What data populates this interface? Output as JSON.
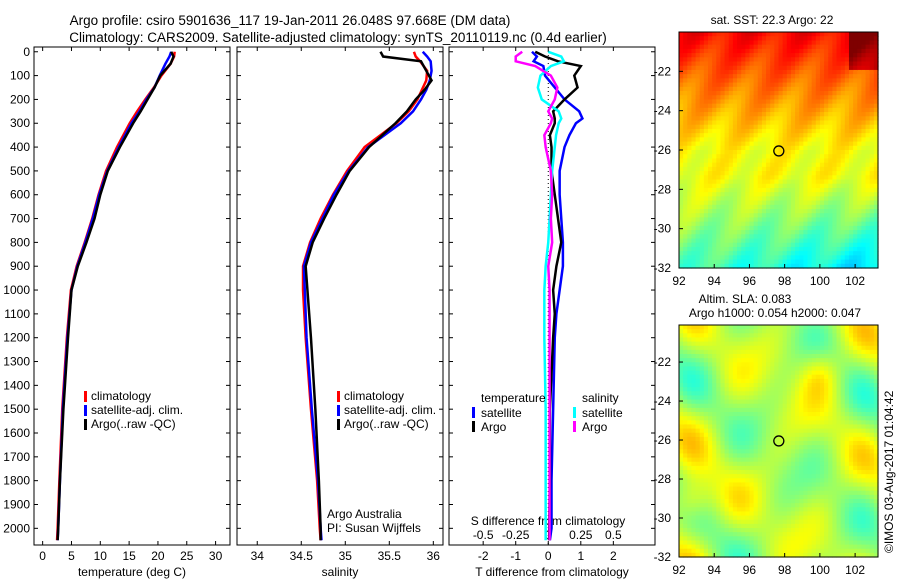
{
  "title_line1": "Argo profile: csiro 5901636_117 19-Jan-2011 26.048S 97.668E (DM data)",
  "title_line2": "Climatology: CARS2009. Satellite-adjusted climatology: synTS_20110119.nc (0.4d earlier)",
  "side_label": "©IMOS 03-Aug-2017 01:04:42",
  "colors": {
    "climatology": "#ff0000",
    "satellite": "#0000ff",
    "argo": "#000000",
    "sal_satellite": "#00ffff",
    "sal_argo": "#ff00ff"
  },
  "chart_data": [
    {
      "type": "line",
      "xlabel": "temperature (deg C)",
      "xlim": [
        -1.5,
        32.5
      ],
      "xticks": [
        "0",
        "5",
        "10",
        "15",
        "20",
        "25",
        "30"
      ],
      "xtick_values": [
        0,
        5,
        10,
        15,
        20,
        25,
        30
      ],
      "ylim": [
        -20,
        2070
      ],
      "yticks": [
        "0",
        "100",
        "200",
        "300",
        "400",
        "500",
        "600",
        "700",
        "800",
        "900",
        "1000",
        "1100",
        "1200",
        "1300",
        "1400",
        "1500",
        "1600",
        "1700",
        "1800",
        "1900",
        "2000"
      ],
      "ytick_values": [
        0,
        100,
        200,
        300,
        400,
        500,
        600,
        700,
        800,
        900,
        1000,
        1100,
        1200,
        1300,
        1400,
        1500,
        1600,
        1700,
        1800,
        1900,
        2000
      ],
      "legend": [
        "climatology",
        "satellite-adj. clim.",
        "Argo(..raw -QC)"
      ],
      "legend_placement": "lower-right",
      "depth": [
        0,
        20,
        50,
        100,
        150,
        200,
        250,
        300,
        400,
        500,
        600,
        700,
        800,
        900,
        1000,
        1200,
        1500,
        1800,
        2000,
        2050
      ],
      "series": [
        {
          "name": "climatology",
          "color": "#ff0000",
          "values": [
            22.9,
            22.8,
            22.2,
            20.6,
            19.3,
            17.8,
            16.4,
            15.1,
            12.9,
            11.0,
            9.7,
            8.6,
            7.3,
            5.9,
            4.9,
            4.2,
            3.4,
            2.9,
            2.6,
            2.5
          ]
        },
        {
          "name": "satellite-adj. clim.",
          "color": "#0000ff",
          "values": [
            22.3,
            22.0,
            21.3,
            20.3,
            19.4,
            18.0,
            16.8,
            15.4,
            13.2,
            11.2,
            9.8,
            8.7,
            7.4,
            6.0,
            5.0,
            4.3,
            3.5,
            3.0,
            2.7,
            2.6
          ]
        },
        {
          "name": "Argo(..raw -QC)",
          "color": "#000000",
          "values": [
            22.3,
            22.7,
            22.2,
            20.4,
            19.4,
            18.2,
            17.0,
            15.7,
            13.4,
            11.3,
            10.0,
            9.0,
            7.6,
            6.1,
            5.0,
            4.4,
            3.6,
            3.0,
            2.7,
            2.6
          ]
        }
      ]
    },
    {
      "type": "line",
      "xlabel": "salinity",
      "xlim": [
        33.77,
        36.11
      ],
      "xticks": [
        "34",
        "34.5",
        "35",
        "35.5",
        "36"
      ],
      "xtick_values": [
        34,
        34.5,
        35,
        35.5,
        36
      ],
      "legend": [
        "climatology",
        "satellite-adj. clim.",
        "Argo(..raw -QC)"
      ],
      "annotation": [
        "Argo Australia",
        "PI: Susan Wijffels"
      ],
      "depth": [
        0,
        20,
        40,
        80,
        120,
        160,
        200,
        250,
        300,
        400,
        500,
        600,
        700,
        800,
        900,
        1000,
        1200,
        1500,
        1800,
        2000,
        2050
      ],
      "series": [
        {
          "name": "climatology",
          "color": "#ff0000",
          "values": [
            35.78,
            35.8,
            35.85,
            35.93,
            35.92,
            35.87,
            35.82,
            35.72,
            35.58,
            35.22,
            35.02,
            34.86,
            34.72,
            34.6,
            34.52,
            34.52,
            34.55,
            34.61,
            34.68,
            34.71,
            34.72
          ]
        },
        {
          "name": "satellite-adj. clim.",
          "color": "#0000ff",
          "values": [
            35.88,
            35.93,
            35.97,
            35.98,
            35.96,
            35.92,
            35.86,
            35.77,
            35.63,
            35.26,
            35.04,
            34.87,
            34.74,
            34.61,
            34.53,
            34.54,
            34.56,
            34.62,
            34.69,
            34.72,
            34.73
          ]
        },
        {
          "name": "Argo(..raw -QC)",
          "color": "#000000",
          "values": [
            35.4,
            35.43,
            35.86,
            35.92,
            35.98,
            35.9,
            35.8,
            35.7,
            35.57,
            35.27,
            35.05,
            34.9,
            34.76,
            34.63,
            34.55,
            34.57,
            34.61,
            34.66,
            34.7,
            34.72,
            34.72
          ]
        }
      ]
    },
    {
      "type": "line",
      "xlabel": "T difference from climatology",
      "xlabel2": "S difference from climatology",
      "xlim": [
        -3.05,
        3.28
      ],
      "xticks": [
        "-2",
        "-1",
        "0",
        "1",
        "2"
      ],
      "xtick_values": [
        -2,
        -1,
        0,
        1,
        2
      ],
      "xticks2": [
        "-0.5",
        "-0.25",
        "0",
        "0.25",
        "0.5"
      ],
      "xtick2_values": [
        -0.5,
        -0.25,
        0,
        0.25,
        0.5
      ],
      "legend_groups": [
        {
          "title": "temperature",
          "entries": [
            "satellite",
            "Argo"
          ]
        },
        {
          "title": "salinity",
          "entries": [
            "satellite",
            "Argo"
          ]
        }
      ],
      "depth": [
        0,
        20,
        40,
        60,
        100,
        150,
        200,
        250,
        280,
        300,
        350,
        400,
        500,
        600,
        700,
        800,
        900,
        1000,
        1100,
        1200,
        1500,
        1800,
        2000,
        2050
      ],
      "series": [
        {
          "name": "temperature satellite",
          "color": "#0000ff",
          "values": [
            -0.5,
            -0.35,
            -0.45,
            -0.15,
            -0.1,
            0.2,
            0.5,
            0.95,
            1.05,
            0.85,
            0.65,
            0.5,
            0.35,
            0.35,
            0.4,
            0.45,
            0.45,
            0.35,
            0.25,
            0.2,
            0.15,
            0.1,
            0.1,
            0.05
          ]
        },
        {
          "name": "temperature Argo",
          "color": "#000000",
          "values": [
            -0.4,
            -0.1,
            0.3,
            1.0,
            0.8,
            0.9,
            0.5,
            0.15,
            0.2,
            0.2,
            0.05,
            0.1,
            0.1,
            0.2,
            0.3,
            0.4,
            0.25,
            0.15,
            0.2,
            0.15,
            0.05,
            0.05,
            0.03,
            0.03
          ]
        },
        {
          "name": "salinity satellite",
          "color": "#00ffff",
          "values": [
            0.0,
            0.1,
            0.12,
            0.02,
            -0.06,
            -0.08,
            -0.05,
            0.08,
            0.1,
            0.08,
            0.06,
            0.05,
            0.03,
            0.02,
            0.01,
            0.0,
            -0.02,
            -0.03,
            -0.03,
            -0.03,
            -0.02,
            -0.02,
            -0.02,
            -0.02
          ]
        },
        {
          "name": "salinity Argo",
          "color": "#ff00ff",
          "values": [
            -0.2,
            -0.25,
            -0.25,
            -0.1,
            0.02,
            0.07,
            0.05,
            0.0,
            0.03,
            0.02,
            -0.03,
            -0.02,
            0.02,
            0.03,
            0.02,
            0.03,
            0.0,
            0.01,
            0.01,
            0.01,
            0.01,
            0.01,
            0.01,
            0.01
          ]
        }
      ]
    },
    {
      "type": "heatmap",
      "title": "sat. SST: 22.3 Argo: 22",
      "xlim": [
        92,
        103.3
      ],
      "ylim": [
        -32,
        -20
      ],
      "xticks": [
        "92",
        "94",
        "96",
        "98",
        "100",
        "102"
      ],
      "xtick_values": [
        92,
        94,
        96,
        98,
        100,
        102
      ],
      "yticks": [
        "-22",
        "-24",
        "-26",
        "-28",
        "-30",
        "-32"
      ],
      "ytick_values": [
        -22,
        -24,
        -26,
        -28,
        -30,
        -32
      ],
      "marker": {
        "lon": 97.668,
        "lat": -26.048
      }
    },
    {
      "type": "heatmap",
      "title": "Altim. SLA: 0.083",
      "subtitle": "Argo h1000: 0.054 h2000: 0.047",
      "xlim": [
        92,
        103.3
      ],
      "ylim": [
        -32,
        -20.1
      ],
      "xticks": [
        "92",
        "94",
        "96",
        "98",
        "100",
        "102"
      ],
      "xtick_values": [
        92,
        94,
        96,
        98,
        100,
        102
      ],
      "yticks": [
        "-22",
        "-24",
        "-26",
        "-28",
        "-30",
        "-32"
      ],
      "ytick_values": [
        -22,
        -24,
        -26,
        -28,
        -30,
        -32
      ],
      "marker": {
        "lon": 97.668,
        "lat": -26.048
      }
    }
  ]
}
